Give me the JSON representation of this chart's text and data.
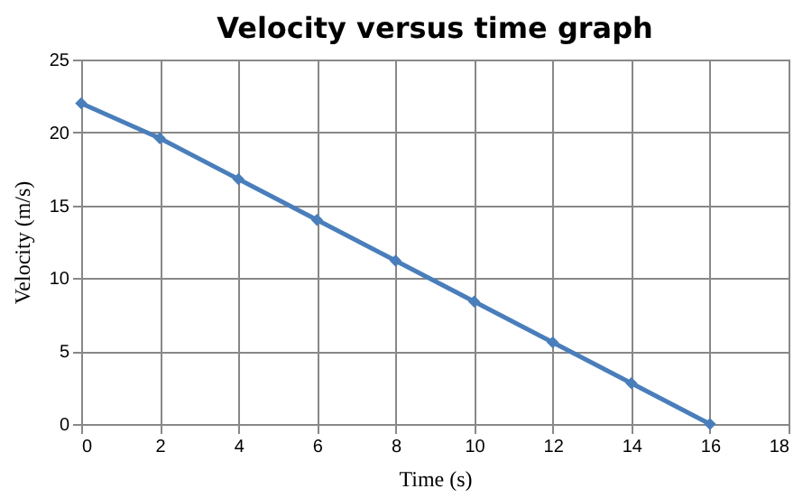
{
  "chart_data": {
    "type": "line",
    "title": "Velocity versus time graph",
    "xlabel": "Time (s)",
    "ylabel": "Velocity (m/s)",
    "x": [
      0,
      2,
      4,
      6,
      8,
      10,
      12,
      14,
      16
    ],
    "series": [
      {
        "color": "#4a7ebb",
        "values": [
          22,
          19.6,
          16.8,
          14,
          11.2,
          8.4,
          5.6,
          2.8,
          0
        ]
      }
    ],
    "xlim": [
      0,
      18
    ],
    "xticks": [
      0,
      2,
      4,
      6,
      8,
      10,
      12,
      14,
      16,
      18
    ],
    "ylim": [
      0,
      25
    ],
    "yticks": [
      0,
      5,
      10,
      15,
      20,
      25
    ],
    "grid": true,
    "marker": "diamond",
    "line_style": "solid"
  }
}
